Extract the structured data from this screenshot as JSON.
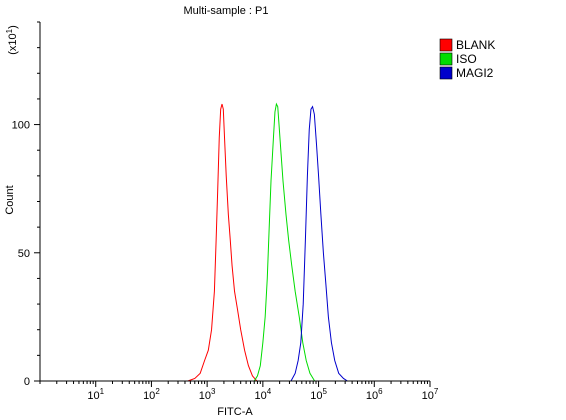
{
  "chart_data": {
    "type": "line",
    "title": "Multi-sample : P1",
    "xlabel": "FITC-A",
    "ylabel": "Count",
    "y_multiplier_label": {
      "base": "(x10",
      "exp": "1",
      "close": ")"
    },
    "x_scale": "log",
    "xlim": [
      1,
      10000000
    ],
    "ylim": [
      0,
      140
    ],
    "x_ticks": [
      {
        "base": "10",
        "exp": "1",
        "value": 10
      },
      {
        "base": "10",
        "exp": "2",
        "value": 100
      },
      {
        "base": "10",
        "exp": "3",
        "value": 1000
      },
      {
        "base": "10",
        "exp": "4",
        "value": 10000
      },
      {
        "base": "10",
        "exp": "5",
        "value": 100000
      },
      {
        "base": "10",
        "exp": "6",
        "value": 1000000
      },
      {
        "base": "10",
        "exp": "7",
        "value": 10000000
      }
    ],
    "y_ticks": [
      0,
      50,
      100
    ],
    "grid": false,
    "legend_position": "top-right",
    "series": [
      {
        "name": "BLANK",
        "color": "#ff0000",
        "points": [
          [
            450,
            0
          ],
          [
            600,
            1
          ],
          [
            750,
            3
          ],
          [
            900,
            8
          ],
          [
            1050,
            12
          ],
          [
            1200,
            20
          ],
          [
            1350,
            35
          ],
          [
            1450,
            55
          ],
          [
            1550,
            75
          ],
          [
            1650,
            95
          ],
          [
            1750,
            106
          ],
          [
            1850,
            108
          ],
          [
            1950,
            106
          ],
          [
            2050,
            95
          ],
          [
            2200,
            80
          ],
          [
            2400,
            65
          ],
          [
            2600,
            55
          ],
          [
            2800,
            45
          ],
          [
            3100,
            35
          ],
          [
            3500,
            28
          ],
          [
            4000,
            20
          ],
          [
            4700,
            12
          ],
          [
            5500,
            6
          ],
          [
            6500,
            2
          ],
          [
            7800,
            0
          ]
        ]
      },
      {
        "name": "ISO",
        "color": "#00dd00",
        "points": [
          [
            7000,
            0
          ],
          [
            8000,
            2
          ],
          [
            9000,
            6
          ],
          [
            10000,
            15
          ],
          [
            11000,
            25
          ],
          [
            12000,
            40
          ],
          [
            13000,
            60
          ],
          [
            14000,
            78
          ],
          [
            15500,
            95
          ],
          [
            16500,
            105
          ],
          [
            17500,
            108
          ],
          [
            18500,
            107
          ],
          [
            19500,
            100
          ],
          [
            21000,
            90
          ],
          [
            23000,
            78
          ],
          [
            26000,
            65
          ],
          [
            29000,
            55
          ],
          [
            33000,
            45
          ],
          [
            38000,
            35
          ],
          [
            45000,
            25
          ],
          [
            52000,
            15
          ],
          [
            60000,
            8
          ],
          [
            70000,
            3
          ],
          [
            85000,
            0
          ]
        ]
      },
      {
        "name": "MAGI2",
        "color": "#0000cc",
        "points": [
          [
            32000,
            0
          ],
          [
            38000,
            3
          ],
          [
            43000,
            8
          ],
          [
            48000,
            15
          ],
          [
            53000,
            30
          ],
          [
            58000,
            55
          ],
          [
            63000,
            80
          ],
          [
            68000,
            98
          ],
          [
            73000,
            106
          ],
          [
            78000,
            107
          ],
          [
            84000,
            104
          ],
          [
            92000,
            92
          ],
          [
            100000,
            80
          ],
          [
            110000,
            65
          ],
          [
            122000,
            50
          ],
          [
            135000,
            38
          ],
          [
            150000,
            25
          ],
          [
            170000,
            15
          ],
          [
            195000,
            8
          ],
          [
            230000,
            3
          ],
          [
            280000,
            1
          ],
          [
            330000,
            0
          ]
        ]
      }
    ]
  }
}
